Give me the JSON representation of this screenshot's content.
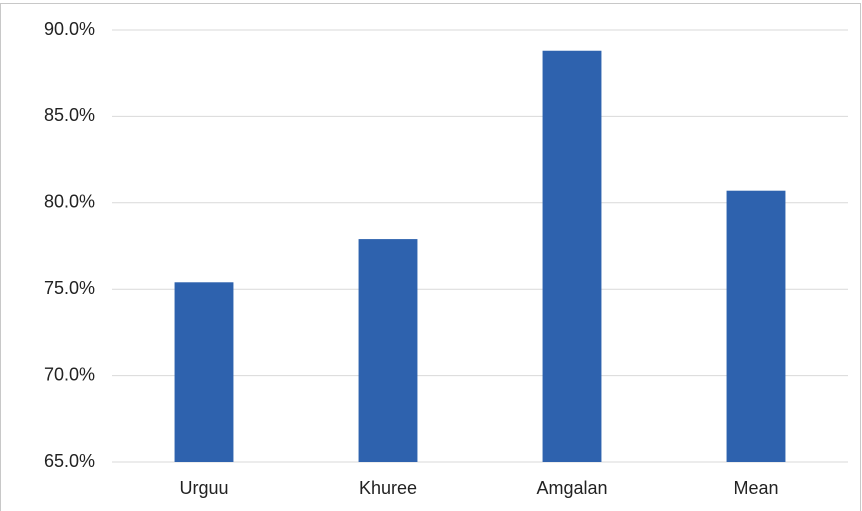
{
  "chart_data": {
    "type": "bar",
    "categories": [
      "Urguu",
      "Khuree",
      "Amgalan",
      "Mean"
    ],
    "values": [
      75.4,
      77.9,
      88.8,
      80.7
    ],
    "color": "#2e62ae",
    "ylim": [
      65,
      90
    ],
    "yticks": [
      {
        "value": 65,
        "label": "65.0%"
      },
      {
        "value": 70,
        "label": "70.0%"
      },
      {
        "value": 75,
        "label": "75.0%"
      },
      {
        "value": 80,
        "label": "80.0%"
      },
      {
        "value": 85,
        "label": "85.0%"
      },
      {
        "value": 90,
        "label": "90.0%"
      }
    ],
    "grid": true
  }
}
